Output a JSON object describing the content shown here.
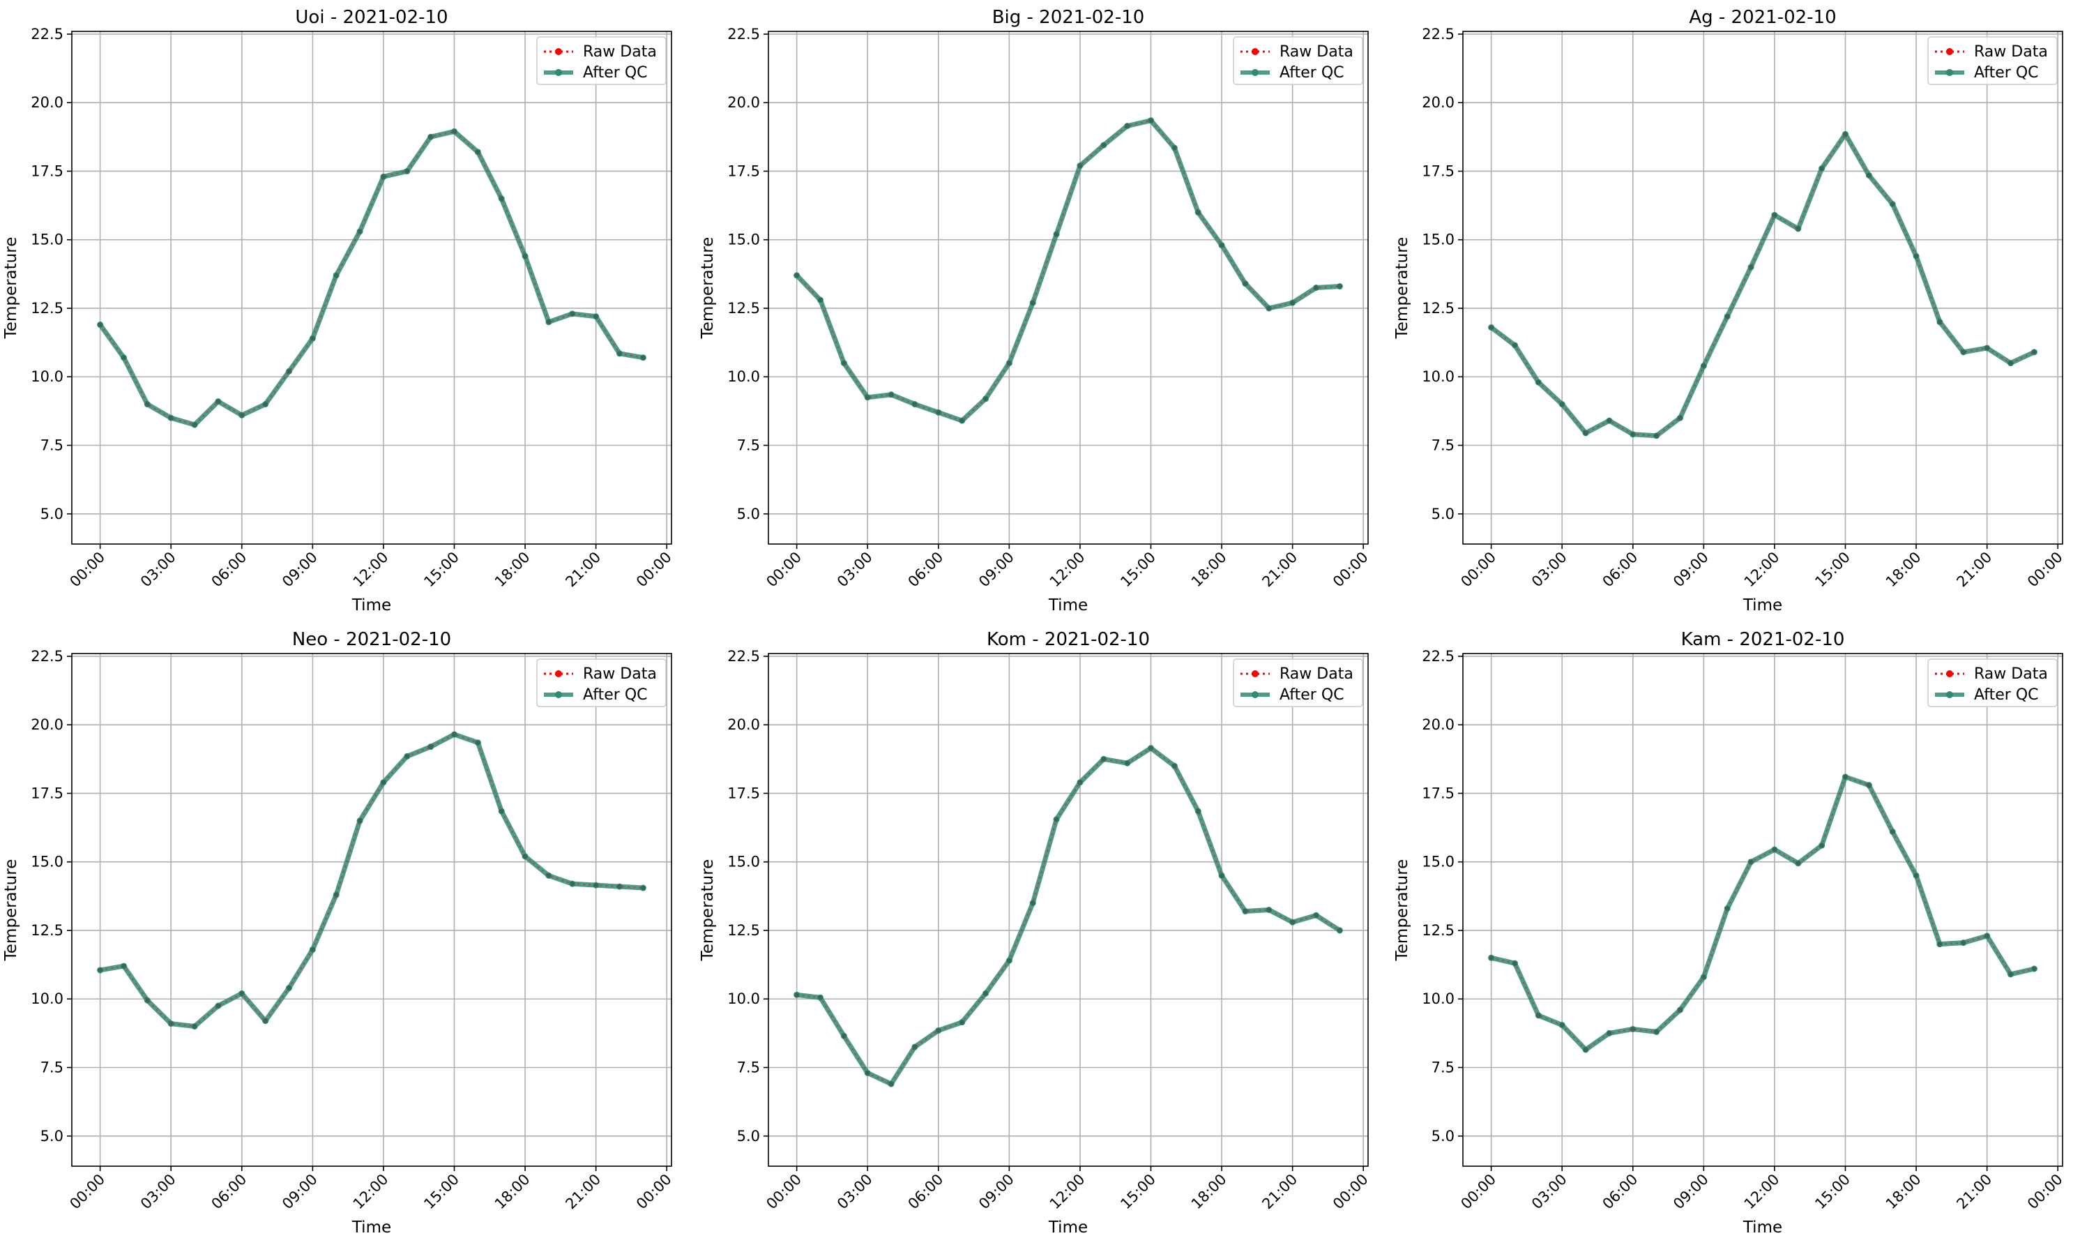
{
  "colors": {
    "raw": "#ff0000",
    "qc": "#2e8b72",
    "grid": "#b0b0b0",
    "axis": "#000000"
  },
  "chart_data": [
    {
      "type": "line",
      "title": "Uoi - 2021-02-10",
      "xlabel": "Time",
      "ylabel": "Temperature",
      "x": [
        0,
        1,
        2,
        3,
        4,
        5,
        6,
        7,
        8,
        9,
        10,
        11,
        12,
        13,
        14,
        15,
        16,
        17,
        18,
        19,
        20,
        21,
        22,
        23
      ],
      "x_ticks": [
        "00:00",
        "03:00",
        "06:00",
        "09:00",
        "12:00",
        "15:00",
        "18:00",
        "21:00",
        "00:00"
      ],
      "xlim": [
        -1.2,
        24.2
      ],
      "ylim": [
        3.9,
        22.6
      ],
      "y_ticks": [
        5.0,
        7.5,
        10.0,
        12.5,
        15.0,
        17.5,
        20.0,
        22.5
      ],
      "grid": true,
      "legend_position": "top-right",
      "series": [
        {
          "name": "Raw Data",
          "values": [
            11.9,
            10.7,
            9.0,
            8.5,
            8.25,
            9.1,
            8.6,
            9.0,
            10.2,
            11.4,
            13.7,
            15.3,
            17.3,
            17.5,
            18.75,
            18.95,
            18.2,
            16.5,
            14.4,
            12.0,
            12.3,
            12.2,
            10.85,
            10.7
          ]
        },
        {
          "name": "After QC",
          "values": [
            11.9,
            10.7,
            9.0,
            8.5,
            8.25,
            9.1,
            8.6,
            9.0,
            10.2,
            11.4,
            13.7,
            15.3,
            17.3,
            17.5,
            18.75,
            18.95,
            18.2,
            16.5,
            14.4,
            12.0,
            12.3,
            12.2,
            10.85,
            10.7
          ]
        }
      ]
    },
    {
      "type": "line",
      "title": "Big - 2021-02-10",
      "xlabel": "Time",
      "ylabel": "Temperature",
      "x": [
        0,
        1,
        2,
        3,
        4,
        5,
        6,
        7,
        8,
        9,
        10,
        11,
        12,
        13,
        14,
        15,
        16,
        17,
        18,
        19,
        20,
        21,
        22,
        23
      ],
      "x_ticks": [
        "00:00",
        "03:00",
        "06:00",
        "09:00",
        "12:00",
        "15:00",
        "18:00",
        "21:00",
        "00:00"
      ],
      "xlim": [
        -1.2,
        24.2
      ],
      "ylim": [
        3.9,
        22.6
      ],
      "y_ticks": [
        5.0,
        7.5,
        10.0,
        12.5,
        15.0,
        17.5,
        20.0,
        22.5
      ],
      "grid": true,
      "legend_position": "top-right",
      "series": [
        {
          "name": "Raw Data",
          "values": [
            13.7,
            12.8,
            10.5,
            9.25,
            9.35,
            9.0,
            8.7,
            8.4,
            9.2,
            10.5,
            12.7,
            15.2,
            17.7,
            18.45,
            19.15,
            19.35,
            18.35,
            16.0,
            14.8,
            13.4,
            12.5,
            12.7,
            13.25,
            13.3
          ]
        },
        {
          "name": "After QC",
          "values": [
            13.7,
            12.8,
            10.5,
            9.25,
            9.35,
            9.0,
            8.7,
            8.4,
            9.2,
            10.5,
            12.7,
            15.2,
            17.7,
            18.45,
            19.15,
            19.35,
            18.35,
            16.0,
            14.8,
            13.4,
            12.5,
            12.7,
            13.25,
            13.3
          ]
        }
      ]
    },
    {
      "type": "line",
      "title": "Ag - 2021-02-10",
      "xlabel": "Time",
      "ylabel": "Temperature",
      "x": [
        0,
        1,
        2,
        3,
        4,
        5,
        6,
        7,
        8,
        9,
        10,
        11,
        12,
        13,
        14,
        15,
        16,
        17,
        18,
        19,
        20,
        21,
        22,
        23
      ],
      "x_ticks": [
        "00:00",
        "03:00",
        "06:00",
        "09:00",
        "12:00",
        "15:00",
        "18:00",
        "21:00",
        "00:00"
      ],
      "xlim": [
        -1.2,
        24.2
      ],
      "ylim": [
        3.9,
        22.6
      ],
      "y_ticks": [
        5.0,
        7.5,
        10.0,
        12.5,
        15.0,
        17.5,
        20.0,
        22.5
      ],
      "grid": true,
      "legend_position": "top-right",
      "series": [
        {
          "name": "Raw Data",
          "values": [
            11.8,
            11.15,
            9.8,
            9.0,
            7.95,
            8.4,
            7.9,
            7.85,
            8.5,
            10.4,
            12.2,
            14.0,
            15.9,
            15.4,
            17.6,
            18.85,
            17.35,
            16.3,
            14.4,
            12.0,
            10.9,
            11.05,
            10.5,
            10.9
          ]
        },
        {
          "name": "After QC",
          "values": [
            11.8,
            11.15,
            9.8,
            9.0,
            7.95,
            8.4,
            7.9,
            7.85,
            8.5,
            10.4,
            12.2,
            14.0,
            15.9,
            15.4,
            17.6,
            18.85,
            17.35,
            16.3,
            14.4,
            12.0,
            10.9,
            11.05,
            10.5,
            10.9
          ]
        }
      ]
    },
    {
      "type": "line",
      "title": "Neo - 2021-02-10",
      "xlabel": "Time",
      "ylabel": "Temperature",
      "x": [
        0,
        1,
        2,
        3,
        4,
        5,
        6,
        7,
        8,
        9,
        10,
        11,
        12,
        13,
        14,
        15,
        16,
        17,
        18,
        19,
        20,
        21,
        22,
        23
      ],
      "x_ticks": [
        "00:00",
        "03:00",
        "06:00",
        "09:00",
        "12:00",
        "15:00",
        "18:00",
        "21:00",
        "00:00"
      ],
      "xlim": [
        -1.2,
        24.2
      ],
      "ylim": [
        3.9,
        22.6
      ],
      "y_ticks": [
        5.0,
        7.5,
        10.0,
        12.5,
        15.0,
        17.5,
        20.0,
        22.5
      ],
      "grid": true,
      "legend_position": "top-right",
      "series": [
        {
          "name": "Raw Data",
          "values": [
            11.05,
            11.2,
            9.95,
            9.1,
            9.0,
            9.75,
            10.2,
            9.2,
            10.4,
            11.8,
            13.8,
            16.5,
            17.9,
            18.85,
            19.2,
            19.65,
            19.35,
            16.85,
            15.2,
            14.5,
            14.2,
            14.15,
            14.1,
            14.05
          ]
        },
        {
          "name": "After QC",
          "values": [
            11.05,
            11.2,
            9.95,
            9.1,
            9.0,
            9.75,
            10.2,
            9.2,
            10.4,
            11.8,
            13.8,
            16.5,
            17.9,
            18.85,
            19.2,
            19.65,
            19.35,
            16.85,
            15.2,
            14.5,
            14.2,
            14.15,
            14.1,
            14.05
          ]
        }
      ]
    },
    {
      "type": "line",
      "title": "Kom - 2021-02-10",
      "xlabel": "Time",
      "ylabel": "Temperature",
      "x": [
        0,
        1,
        2,
        3,
        4,
        5,
        6,
        7,
        8,
        9,
        10,
        11,
        12,
        13,
        14,
        15,
        16,
        17,
        18,
        19,
        20,
        21,
        22,
        23
      ],
      "x_ticks": [
        "00:00",
        "03:00",
        "06:00",
        "09:00",
        "12:00",
        "15:00",
        "18:00",
        "21:00",
        "00:00"
      ],
      "xlim": [
        -1.2,
        24.2
      ],
      "ylim": [
        3.9,
        22.6
      ],
      "y_ticks": [
        5.0,
        7.5,
        10.0,
        12.5,
        15.0,
        17.5,
        20.0,
        22.5
      ],
      "grid": true,
      "legend_position": "top-right",
      "series": [
        {
          "name": "Raw Data",
          "values": [
            10.15,
            10.05,
            8.65,
            7.3,
            6.9,
            8.25,
            8.85,
            9.15,
            10.2,
            11.4,
            13.5,
            16.55,
            17.9,
            18.75,
            18.6,
            19.15,
            18.5,
            16.85,
            14.5,
            13.2,
            13.25,
            12.8,
            13.05,
            12.5
          ]
        },
        {
          "name": "After QC",
          "values": [
            10.15,
            10.05,
            8.65,
            7.3,
            6.9,
            8.25,
            8.85,
            9.15,
            10.2,
            11.4,
            13.5,
            16.55,
            17.9,
            18.75,
            18.6,
            19.15,
            18.5,
            16.85,
            14.5,
            13.2,
            13.25,
            12.8,
            13.05,
            12.5
          ]
        }
      ]
    },
    {
      "type": "line",
      "title": "Kam - 2021-02-10",
      "xlabel": "Time",
      "ylabel": "Temperature",
      "x": [
        0,
        1,
        2,
        3,
        4,
        5,
        6,
        7,
        8,
        9,
        10,
        11,
        12,
        13,
        14,
        15,
        16,
        17,
        18,
        19,
        20,
        21,
        22,
        23
      ],
      "x_ticks": [
        "00:00",
        "03:00",
        "06:00",
        "09:00",
        "12:00",
        "15:00",
        "18:00",
        "21:00",
        "00:00"
      ],
      "xlim": [
        -1.2,
        24.2
      ],
      "ylim": [
        3.9,
        22.6
      ],
      "y_ticks": [
        5.0,
        7.5,
        10.0,
        12.5,
        15.0,
        17.5,
        20.0,
        22.5
      ],
      "grid": true,
      "legend_position": "top-right",
      "series": [
        {
          "name": "Raw Data",
          "values": [
            11.5,
            11.3,
            9.4,
            9.05,
            8.15,
            8.75,
            8.9,
            8.8,
            9.6,
            10.8,
            13.3,
            15.0,
            15.45,
            14.95,
            15.6,
            18.1,
            17.8,
            16.1,
            14.5,
            12.0,
            12.05,
            12.3,
            10.9,
            11.1
          ]
        },
        {
          "name": "After QC",
          "values": [
            11.5,
            11.3,
            9.4,
            9.05,
            8.15,
            8.75,
            8.9,
            8.8,
            9.6,
            10.8,
            13.3,
            15.0,
            15.45,
            14.95,
            15.6,
            18.1,
            17.8,
            16.1,
            14.5,
            12.0,
            12.05,
            12.3,
            10.9,
            11.1
          ]
        }
      ]
    }
  ]
}
